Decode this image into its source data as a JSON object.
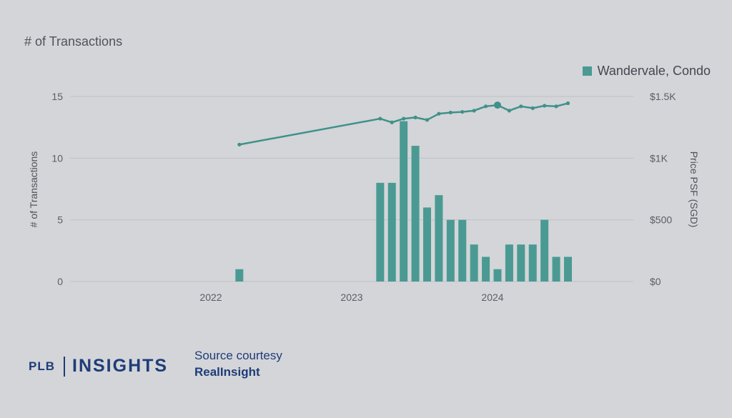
{
  "panel": {
    "title": "# of Transactions"
  },
  "colors": {
    "bar": "#4a9a93",
    "line": "#3f918a",
    "grid": "#bfc2c6",
    "brand": "#1f3c78"
  },
  "chart_data": {
    "type": "bar+line",
    "xlabel": "",
    "ylabel_left": "# of Transactions",
    "ylabel_right": "Price PSF (SGD)",
    "ylim_left": [
      0,
      15
    ],
    "ylim_right": [
      0,
      1500
    ],
    "left_ticks": [
      {
        "value": 0,
        "label": "0"
      },
      {
        "value": 5,
        "label": "5"
      },
      {
        "value": 10,
        "label": "10"
      },
      {
        "value": 15,
        "label": "15"
      }
    ],
    "right_ticks": [
      {
        "value": 0,
        "label": "$0"
      },
      {
        "value": 500,
        "label": "$500"
      },
      {
        "value": 1000,
        "label": "$1K"
      },
      {
        "value": 1500,
        "label": "$1.5K"
      }
    ],
    "x_ticks": [
      {
        "value": "2022-01",
        "label": "2022"
      },
      {
        "value": "2023-01",
        "label": "2023"
      },
      {
        "value": "2024-01",
        "label": "2024"
      }
    ],
    "grid": true,
    "legend": {
      "position": "top-right",
      "entries": [
        "Wandervale, Condo"
      ]
    },
    "series": [
      {
        "name": "Wandervale, Condo",
        "kind": "bar",
        "axis": "left",
        "x": [
          "2022-03",
          "2023-03",
          "2023-04",
          "2023-05",
          "2023-06",
          "2023-07",
          "2023-08",
          "2023-09",
          "2023-10",
          "2023-11",
          "2023-12",
          "2024-01",
          "2024-02",
          "2024-03",
          "2024-04",
          "2024-05",
          "2024-06",
          "2024-07"
        ],
        "values": [
          1,
          8,
          8,
          13,
          11,
          6,
          7,
          5,
          5,
          3,
          2,
          1,
          3,
          3,
          3,
          5,
          2,
          2
        ]
      },
      {
        "kind": "line",
        "axis": "right",
        "x": [
          "2022-03",
          "2023-03",
          "2023-04",
          "2023-05",
          "2023-06",
          "2023-07",
          "2023-08",
          "2023-09",
          "2023-10",
          "2023-11",
          "2023-12",
          "2024-01",
          "2024-02",
          "2024-03",
          "2024-04",
          "2024-05",
          "2024-06",
          "2024-07"
        ],
        "values": [
          1110,
          1320,
          1290,
          1320,
          1330,
          1310,
          1360,
          1370,
          1375,
          1385,
          1420,
          1430,
          1385,
          1420,
          1405,
          1425,
          1420,
          1445
        ],
        "highlight_x": "2024-01"
      }
    ]
  },
  "footer": {
    "logo_left": "PLB",
    "logo_right": "INSIGHTS",
    "source_line1": "Source courtesy",
    "source_line2": "RealInsight"
  }
}
